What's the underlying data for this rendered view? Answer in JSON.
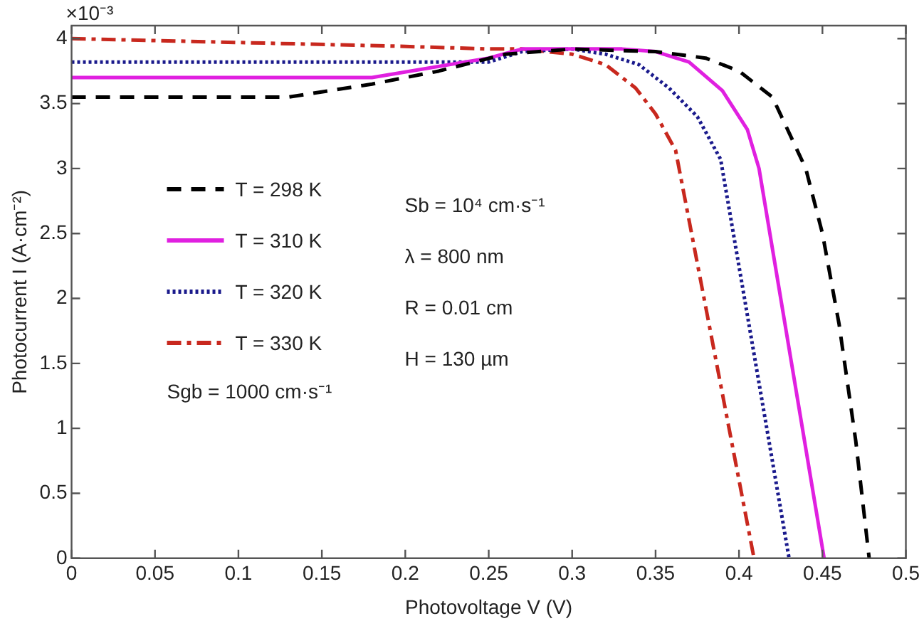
{
  "chart_data": {
    "type": "line",
    "xlabel": "Photovoltage V (V)",
    "ylabel": "Photocurrent I (A·cm⁻²)",
    "xlim": [
      0,
      0.5
    ],
    "xticks": [
      0,
      0.05,
      0.1,
      0.15,
      0.2,
      0.25,
      0.3,
      0.35,
      0.4,
      0.45,
      0.5
    ],
    "ylim": [
      0,
      4.1
    ],
    "yticks": [
      0,
      0.5,
      1,
      1.5,
      2,
      2.5,
      3,
      3.5,
      4
    ],
    "grid": false,
    "legend": "left",
    "marker": "none",
    "annotations": [
      "×10⁻³",
      "Sgb = 1000 cm·s⁻¹",
      "Sb = 10⁴ cm·s⁻¹",
      "λ = 800 nm",
      "R = 0.01 cm",
      "H = 130 µm"
    ],
    "series": [
      {
        "name": "T = 298 K",
        "color": "#000000",
        "line_style": "dashed",
        "x": [
          0,
          0.13,
          0.18,
          0.22,
          0.26,
          0.3,
          0.35,
          0.38,
          0.4,
          0.42,
          0.44,
          0.45,
          0.46,
          0.47,
          0.478
        ],
        "values": [
          3.55,
          3.55,
          3.65,
          3.75,
          3.88,
          3.92,
          3.9,
          3.85,
          3.75,
          3.55,
          3.0,
          2.5,
          1.8,
          0.9,
          0
        ]
      },
      {
        "name": "T = 310 K",
        "color": "#e020e0",
        "line_style": "solid",
        "x": [
          0,
          0.18,
          0.25,
          0.27,
          0.33,
          0.35,
          0.37,
          0.39,
          0.405,
          0.412,
          0.451
        ],
        "values": [
          3.7,
          3.7,
          3.85,
          3.92,
          3.92,
          3.9,
          3.82,
          3.6,
          3.3,
          3.0,
          0
        ]
      },
      {
        "name": "T = 320 K",
        "color": "#1a1a8c",
        "line_style": "dotted",
        "x": [
          0,
          0.25,
          0.27,
          0.3,
          0.32,
          0.34,
          0.358,
          0.375,
          0.389,
          0.43
        ],
        "values": [
          3.82,
          3.82,
          3.9,
          3.92,
          3.88,
          3.8,
          3.62,
          3.4,
          3.07,
          0
        ]
      },
      {
        "name": "T = 330 K",
        "color": "#c8281e",
        "line_style": "dashdot",
        "x": [
          0,
          0.1,
          0.2,
          0.25,
          0.27,
          0.3,
          0.32,
          0.338,
          0.35,
          0.362,
          0.409
        ],
        "values": [
          4.0,
          3.97,
          3.94,
          3.92,
          3.92,
          3.88,
          3.8,
          3.62,
          3.42,
          3.14,
          0
        ]
      }
    ]
  }
}
